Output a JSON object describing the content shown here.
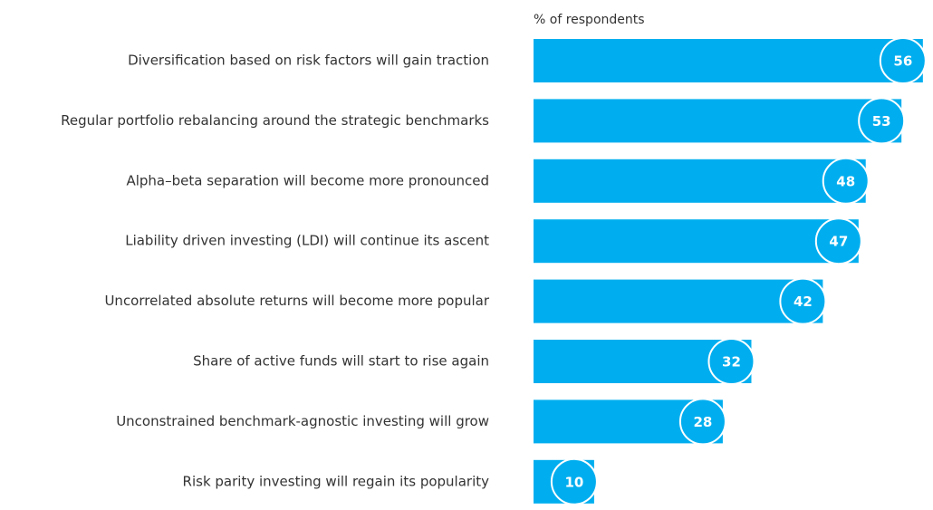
{
  "chart_data": {
    "type": "bar",
    "orientation": "horizontal",
    "subtitle": "% of respondents",
    "categories": [
      "Diversification based on risk factors will gain traction",
      "Regular portfolio rebalancing around the strategic benchmarks",
      "Alpha–beta separation will become more pronounced",
      "Liability driven investing (LDI) will continue its ascent",
      "Uncorrelated absolute returns will become more popular",
      "Share of active funds will start to rise again",
      "Unconstrained benchmark-agnostic investing will grow",
      "Risk parity investing will regain its popularity"
    ],
    "values": [
      56,
      53,
      48,
      47,
      42,
      32,
      28,
      10
    ],
    "color": "#00aeef"
  }
}
